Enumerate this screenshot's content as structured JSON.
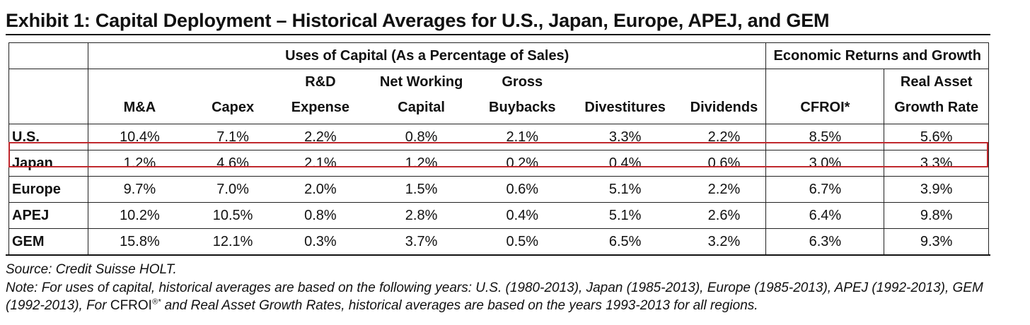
{
  "title": "Exhibit 1: Capital Deployment – Historical Averages for U.S., Japan, Europe, APEJ, and GEM",
  "groups": {
    "uses": "Uses of Capital (As a Percentage of Sales)",
    "returns": "Economic Returns and Growth"
  },
  "columns": {
    "ma": {
      "l1": "",
      "l2": "M&A"
    },
    "capex": {
      "l1": "",
      "l2": "Capex"
    },
    "rd": {
      "l1": "R&D",
      "l2": "Expense"
    },
    "nwc": {
      "l1": "Net Working",
      "l2": "Capital"
    },
    "buybacks": {
      "l1": "Gross",
      "l2": "Buybacks"
    },
    "divest": {
      "l1": "",
      "l2": "Divestitures"
    },
    "dividends": {
      "l1": "",
      "l2": "Dividends"
    },
    "cfroi": {
      "l1": "",
      "l2": "CFROI*"
    },
    "growth": {
      "l1": "Real Asset",
      "l2": "Growth Rate"
    }
  },
  "rows": [
    {
      "region": "U.S.",
      "values": [
        "10.4%",
        "7.1%",
        "2.2%",
        "0.8%",
        "2.1%",
        "3.3%",
        "2.2%",
        "8.5%",
        "5.6%"
      ]
    },
    {
      "region": "Japan",
      "values": [
        "1.2%",
        "4.6%",
        "2.1%",
        "1.2%",
        "0.2%",
        "0.4%",
        "0.6%",
        "3.0%",
        "3.3%"
      ]
    },
    {
      "region": "Europe",
      "values": [
        "9.7%",
        "7.0%",
        "2.0%",
        "1.5%",
        "0.6%",
        "5.1%",
        "2.2%",
        "6.7%",
        "3.9%"
      ]
    },
    {
      "region": "APEJ",
      "values": [
        "10.2%",
        "10.5%",
        "0.8%",
        "2.8%",
        "0.4%",
        "5.1%",
        "2.6%",
        "6.4%",
        "9.8%"
      ]
    },
    {
      "region": "GEM",
      "values": [
        "15.8%",
        "12.1%",
        "0.3%",
        "3.7%",
        "0.5%",
        "6.5%",
        "3.2%",
        "6.3%",
        "9.3%"
      ]
    }
  ],
  "highlighted_row": "Japan",
  "colors": {
    "highlight": "#c0282d",
    "text": "#111111"
  },
  "footer": {
    "source": "Source: Credit Suisse HOLT.",
    "note_before": "Note: For uses of capital, historical averages are based on the following years: U.S. (1980-2013), Japan (1985-2013), Europe (1985-2013), APEJ (1992-2013), GEM (1992-2013), For ",
    "note_mark": "CFROI",
    "note_sup": "®*",
    "note_after": " and Real Asset Growth Rates, historical averages are based on the years 1993-2013 for all regions."
  }
}
